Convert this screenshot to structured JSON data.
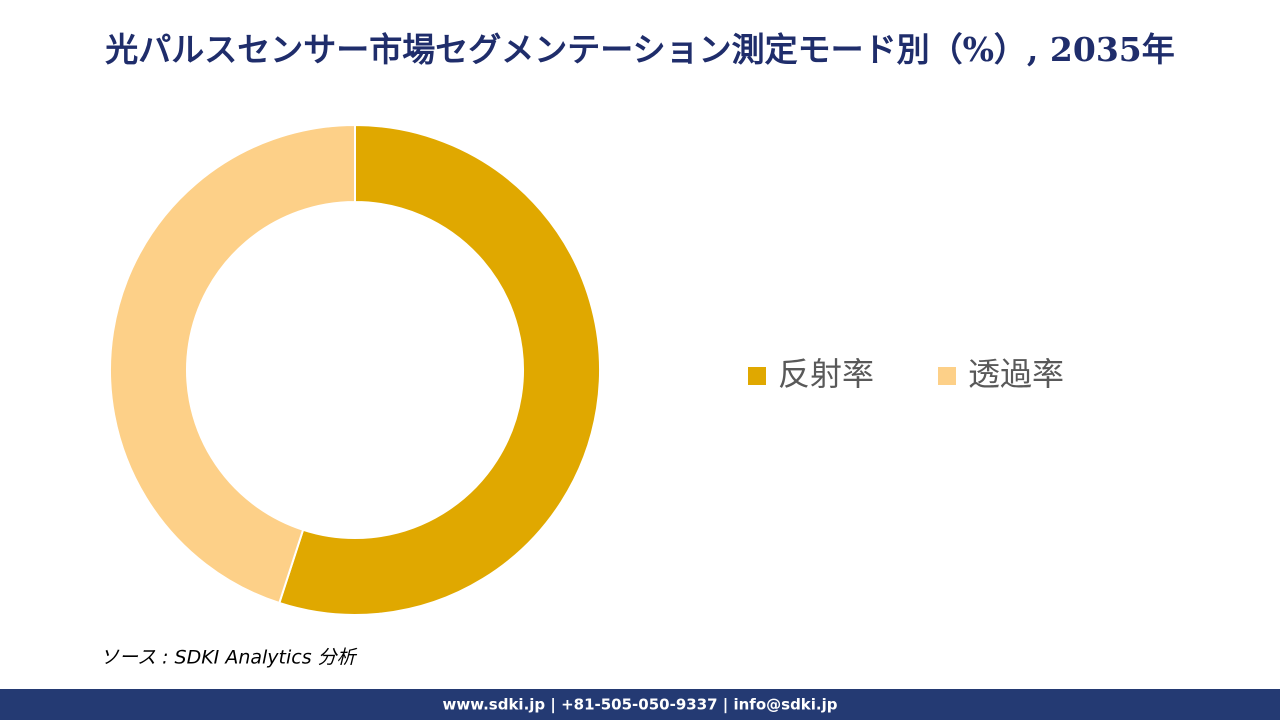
{
  "chart_data": {
    "type": "donut",
    "title": "光パルスセンサー市場セグメンテーション測定モード別（%）, 2035年",
    "categories": [
      "反射率",
      "透過率"
    ],
    "values": [
      55,
      45
    ],
    "colors": [
      "#e0a800",
      "#fdd088"
    ],
    "source": "ソース : SDKI Analytics 分析",
    "footer": "www.sdki.jp | +81-505-050-9337 | info@sdki.jp"
  }
}
